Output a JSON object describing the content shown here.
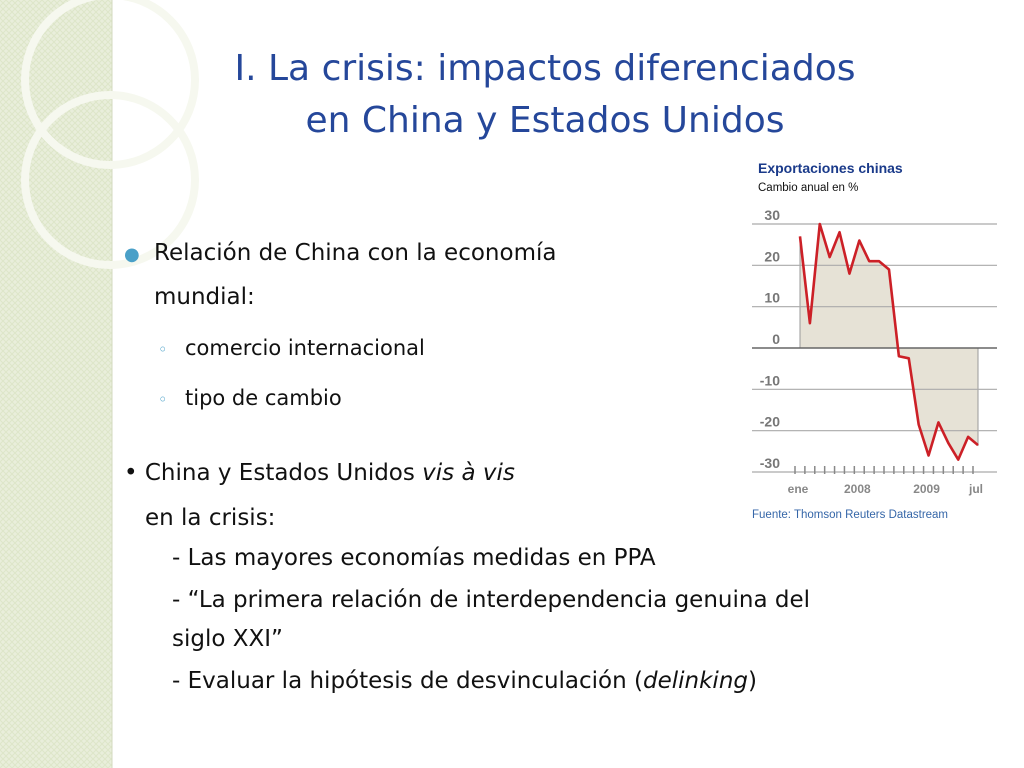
{
  "title": [
    "I. La crisis: impactos diferenciados",
    "en China y Estados Unidos"
  ],
  "bullets": {
    "first": {
      "text": [
        "Relación de China con la economía",
        "mundial:"
      ],
      "sub": [
        "comercio internacional",
        "tipo de cambio"
      ]
    },
    "second": {
      "lead": "• China y Estados Unidos ",
      "lead_italic": "vis à vis",
      "cont": "en la crisis:",
      "items": [
        "- Las mayores economías medidas en PPA",
        "- “La primera relación de interdependencia genuina del",
        "siglo XXI”"
      ],
      "last": {
        "before": "- Evaluar la hipótesis de desvinculación (",
        "italic": "delinking",
        "after": ")"
      }
    }
  },
  "chart_data": {
    "type": "area-line",
    "title": "Exportaciones chinas",
    "subtitle": "Cambio anual en %",
    "source": "Fuente: Thomson Reuters Datastream",
    "categories": [
      "ene",
      null,
      null,
      null,
      null,
      null,
      "2008",
      null,
      null,
      null,
      null,
      null,
      null,
      "2009",
      null,
      null,
      null,
      null,
      "jul"
    ],
    "series": [
      {
        "name": "Exportaciones",
        "color": "#cc2027",
        "fill": "#e6e2d6",
        "values": [
          27,
          6,
          30,
          22,
          28,
          18,
          26,
          21,
          21,
          19,
          -2,
          -2.5,
          -18.5,
          -26,
          -18,
          -23,
          -27,
          -21.5,
          -23.5
        ]
      }
    ],
    "ylim": [
      -30,
      30
    ],
    "yticks": [
      30,
      20,
      10,
      0,
      -10,
      -20,
      -30
    ],
    "grid": true
  }
}
